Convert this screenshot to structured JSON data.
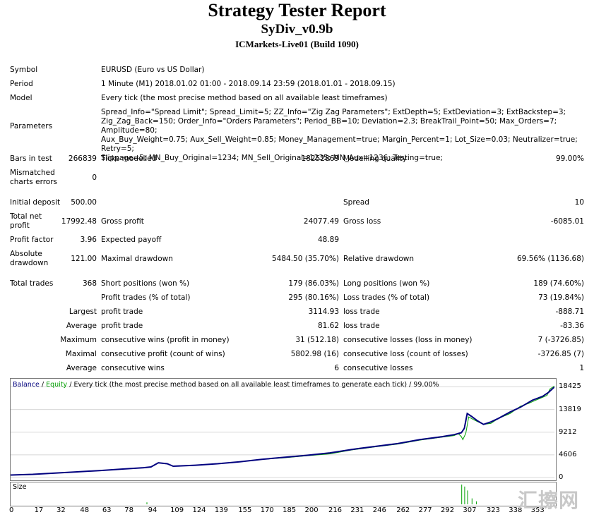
{
  "report": {
    "title": "Strategy Tester Report",
    "ea_name": "SyDiv_v0.9b",
    "server": "ICMarkets-Live01 (Build 1090)"
  },
  "info": {
    "symbol_label": "Symbol",
    "symbol_value": "EURUSD (Euro vs US Dollar)",
    "period_label": "Period",
    "period_value": "1 Minute (M1) 2018.01.02 01:00 - 2018.09.14 23:59 (2018.01.01 - 2018.09.15)",
    "model_label": "Model",
    "model_value": "Every tick (the most precise method based on all available least timeframes)",
    "parameters_label": "Parameters",
    "parameters_value": "Spread_Info=\"Spread Limit\"; Spread_Limit=5; ZZ_Info=\"Zig Zag Parameters\"; ExtDepth=5; ExtDeviation=3; ExtBackstep=3;\nZig_Zag_Back=150; Order_Info=\"Orders Parameters\"; Period_BB=10; Deviation=2.3; BreakTrail_Point=50; Max_Orders=7; Amplitude=80;\nAux_Buy_Weight=0.75; Aux_Sell_Weight=0.85; Money_Management=true; Margin_Percent=1; Lot_Size=0.03; Neutralizer=true; Retry=5;\nSlippage=5; MN_Buy_Original=1234; MN_Sell_Original=1235; MN_Aux=1236; Testing=true;"
  },
  "stats": {
    "bars_label": "Bars in test",
    "bars_value": "266839",
    "ticks_label": "Ticks modelled",
    "ticks_value": "18252869",
    "quality_label": "Modelling quality",
    "quality_value": "99.00%",
    "mismatch_label": "Mismatched charts errors",
    "mismatch_value": "0",
    "deposit_label": "Initial deposit",
    "deposit_value": "500.00",
    "spread_label": "Spread",
    "spread_value": "10",
    "netprofit_label": "Total net profit",
    "netprofit_value": "17992.48",
    "grossprofit_label": "Gross profit",
    "grossprofit_value": "24077.49",
    "grossloss_label": "Gross loss",
    "grossloss_value": "-6085.01",
    "pf_label": "Profit factor",
    "pf_value": "3.96",
    "payoff_label": "Expected payoff",
    "payoff_value": "48.89",
    "absdd_label": "Absolute drawdown",
    "absdd_value": "121.00",
    "maxdd_label": "Maximal drawdown",
    "maxdd_value": "5484.50 (35.70%)",
    "reldd_label": "Relative drawdown",
    "reldd_value": "69.56% (1136.68)",
    "trades_label": "Total trades",
    "trades_value": "368",
    "short_label": "Short positions (won %)",
    "short_value": "179 (86.03%)",
    "long_label": "Long positions (won %)",
    "long_value": "189 (74.60%)",
    "profit_trades_label": "Profit trades (% of total)",
    "profit_trades_value": "295 (80.16%)",
    "loss_trades_label": "Loss trades (% of total)",
    "loss_trades_value": "73 (19.84%)",
    "largest_label": "Largest",
    "largest_profit_label": "profit trade",
    "largest_profit_value": "3114.93",
    "largest_loss_label": "loss trade",
    "largest_loss_value": "-888.71",
    "average_label": "Average",
    "average_profit_label": "profit trade",
    "average_profit_value": "81.62",
    "average_loss_label": "loss trade",
    "average_loss_value": "-83.36",
    "maximum_label": "Maximum",
    "max_cons_wins_label": "consecutive wins (profit in money)",
    "max_cons_wins_value": "31 (512.18)",
    "max_cons_losses_label": "consecutive losses (loss in money)",
    "max_cons_losses_value": "7 (-3726.85)",
    "maximal_label": "Maximal",
    "maxl_cons_profit_label": "consecutive profit (count of wins)",
    "maxl_cons_profit_value": "5802.98 (16)",
    "maxl_cons_loss_label": "consecutive loss (count of losses)",
    "maxl_cons_loss_value": "-3726.85 (7)",
    "avg_label": "Average",
    "avg_cons_wins_label": "consecutive wins",
    "avg_cons_wins_value": "6",
    "avg_cons_losses_label": "consecutive losses",
    "avg_cons_losses_value": "1"
  },
  "chart_data": {
    "type": "line",
    "legend": {
      "balance": "Balance",
      "sep1": " / ",
      "equity": "Equity",
      "sep2": " / ",
      "rest": "Every tick (the most precise method based on all available least timeframes to generate each tick) / 99.00%"
    },
    "colors": {
      "balance": "#00007f",
      "equity": "#00a000",
      "size": "#00a000"
    },
    "y_ticks": [
      "18425",
      "13819",
      "9212",
      "4606",
      "0"
    ],
    "ylim": [
      0,
      19500
    ],
    "x_ticks": [
      "0",
      "17",
      "32",
      "48",
      "63",
      "78",
      "94",
      "109",
      "124",
      "139",
      "155",
      "170",
      "185",
      "200",
      "216",
      "231",
      "246",
      "262",
      "277",
      "292",
      "307",
      "323",
      "338",
      "353"
    ],
    "xlim": [
      0,
      368
    ],
    "balance": [
      [
        0,
        500
      ],
      [
        15,
        650
      ],
      [
        30,
        900
      ],
      [
        45,
        1150
      ],
      [
        60,
        1400
      ],
      [
        75,
        1700
      ],
      [
        90,
        2000
      ],
      [
        95,
        2150
      ],
      [
        100,
        3000
      ],
      [
        106,
        2800
      ],
      [
        110,
        2300
      ],
      [
        125,
        2500
      ],
      [
        140,
        2800
      ],
      [
        155,
        3200
      ],
      [
        170,
        3700
      ],
      [
        185,
        4100
      ],
      [
        200,
        4500
      ],
      [
        216,
        5000
      ],
      [
        231,
        5700
      ],
      [
        246,
        6300
      ],
      [
        262,
        6900
      ],
      [
        277,
        7700
      ],
      [
        292,
        8300
      ],
      [
        300,
        8700
      ],
      [
        305,
        9100
      ],
      [
        307,
        10000
      ],
      [
        309,
        13000
      ],
      [
        312,
        12400
      ],
      [
        316,
        11500
      ],
      [
        320,
        10800
      ],
      [
        325,
        11300
      ],
      [
        330,
        12000
      ],
      [
        338,
        13300
      ],
      [
        345,
        14300
      ],
      [
        353,
        15700
      ],
      [
        360,
        16500
      ],
      [
        364,
        17300
      ],
      [
        368,
        18400
      ]
    ],
    "equity": [
      [
        0,
        500
      ],
      [
        15,
        650
      ],
      [
        30,
        900
      ],
      [
        45,
        1150
      ],
      [
        60,
        1400
      ],
      [
        75,
        1700
      ],
      [
        90,
        2000
      ],
      [
        95,
        2150
      ],
      [
        100,
        3000
      ],
      [
        106,
        2800
      ],
      [
        110,
        2300
      ],
      [
        125,
        2500
      ],
      [
        140,
        2800
      ],
      [
        155,
        3200
      ],
      [
        170,
        3700
      ],
      [
        185,
        4000
      ],
      [
        200,
        4400
      ],
      [
        216,
        4800
      ],
      [
        231,
        5600
      ],
      [
        246,
        6200
      ],
      [
        262,
        6800
      ],
      [
        277,
        7600
      ],
      [
        292,
        8200
      ],
      [
        300,
        8500
      ],
      [
        303,
        8900
      ],
      [
        305,
        8300
      ],
      [
        306,
        7700
      ],
      [
        308,
        9000
      ],
      [
        310,
        12300
      ],
      [
        315,
        11500
      ],
      [
        320,
        10800
      ],
      [
        325,
        11000
      ],
      [
        330,
        12000
      ],
      [
        338,
        13000
      ],
      [
        345,
        14500
      ],
      [
        350,
        15000
      ],
      [
        356,
        15800
      ],
      [
        360,
        16300
      ],
      [
        363,
        16700
      ],
      [
        365,
        18000
      ],
      [
        368,
        18600
      ]
    ],
    "size_label": "Size",
    "size_bars": [
      [
        92,
        0.1
      ],
      [
        305,
        1.0
      ],
      [
        307,
        0.9
      ],
      [
        309,
        0.7
      ],
      [
        312,
        0.3
      ],
      [
        315,
        0.15
      ]
    ]
  },
  "watermark": "汇擦网"
}
